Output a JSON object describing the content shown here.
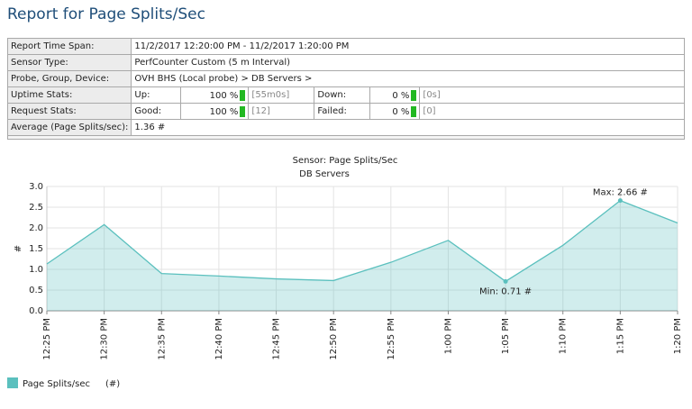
{
  "header": {
    "title": "Report for Page Splits/Sec"
  },
  "report": {
    "rows": [
      [
        "Report Time Span:",
        "11/2/2017 12:20:00 PM - 11/2/2017 1:20:00 PM"
      ],
      [
        "Sensor Type:",
        "PerfCounter Custom (5 m Interval)"
      ],
      [
        "Probe, Group, Device:",
        "OVH BHS (Local probe) > DB Servers >"
      ],
      [
        "Uptime Stats:",
        "Up:",
        "100 %",
        "[55m0s]",
        "Down:",
        "0 %",
        "[0s]"
      ],
      [
        "Request Stats:",
        "Good:",
        "100 %",
        "[12]",
        "Failed:",
        "0 %",
        "[0]"
      ],
      [
        "Average (Page Splits/sec):",
        "1.36 #"
      ]
    ]
  },
  "chart_data": {
    "type": "line",
    "title": "Sensor: Page Splits/Sec",
    "subtitle": "DB Servers",
    "y_label": "#",
    "categories": [
      "12:25 PM",
      "12:30 PM",
      "12:35 PM",
      "12:40 PM",
      "12:45 PM",
      "12:50 PM",
      "12:55 PM",
      "1:00 PM",
      "1:05 PM",
      "1:10 PM",
      "1:15 PM",
      "1:20 PM"
    ],
    "series": [
      {
        "name": "Page Splits/sec",
        "unit": "(#)",
        "color": "#5bc0be",
        "values": [
          1.13,
          2.08,
          0.9,
          0.84,
          0.77,
          0.73,
          1.17,
          1.7,
          0.71,
          1.58,
          2.66,
          2.12
        ]
      }
    ],
    "annotations": {
      "max": "Max: 2.66 #",
      "min": "Min: 0.71 #"
    },
    "ylim": [
      0,
      3
    ],
    "yticks": [
      {
        "value": 0,
        "label": "0.0"
      },
      0.5,
      {
        "value": 1,
        "label": "1.0"
      },
      1.5,
      {
        "value": 2,
        "label": "2.0"
      },
      2.5,
      {
        "value": 3,
        "label": "3.0"
      }
    ],
    "grid": true
  }
}
